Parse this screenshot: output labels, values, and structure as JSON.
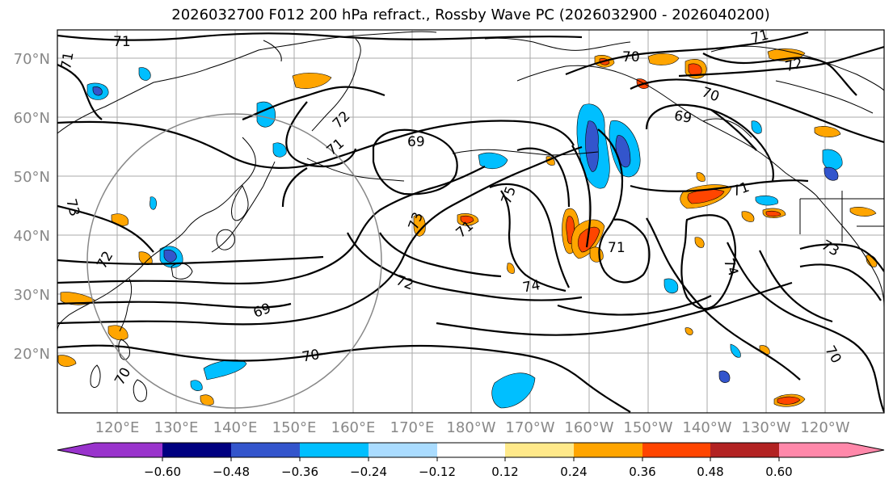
{
  "title": "2026032700 F012 200 hPa refract., Rossby Wave PC (2026032900 - 2026040200)",
  "lat_labels": [
    "70°N",
    "60°N",
    "50°N",
    "40°N",
    "30°N",
    "20°N"
  ],
  "lon_labels": [
    "120°E",
    "130°E",
    "140°E",
    "150°E",
    "160°E",
    "170°E",
    "180°W",
    "170°W",
    "160°W",
    "150°W",
    "140°W",
    "130°W",
    "120°W"
  ],
  "colorbar": {
    "colors": [
      "#9933cc",
      "#000080",
      "#3355cc",
      "#00bfff",
      "#aadcff",
      "#ffffff",
      "#ffe98a",
      "#ffa500",
      "#ff4500",
      "#b22222",
      "#ff88aa"
    ],
    "labels": [
      "−0.60",
      "−0.48",
      "−0.36",
      "−0.24",
      "−0.12",
      "0.12",
      "0.24",
      "0.36",
      "0.48",
      "0.60"
    ]
  },
  "contour_labels": [
    "71",
    "71",
    "70",
    "72",
    "70",
    "69",
    "71",
    "69",
    "71",
    "72",
    "75",
    "73",
    "72",
    "71",
    "74",
    "71",
    "74",
    "73",
    "72",
    "69",
    "70",
    "70",
    "70",
    "73",
    "71"
  ]
}
